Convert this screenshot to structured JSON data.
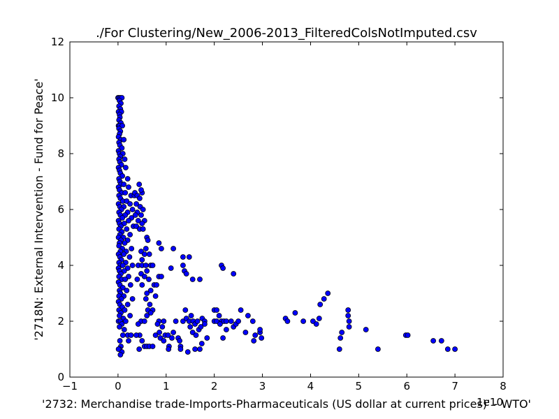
{
  "chart_data": {
    "type": "scatter",
    "title": "./For Clustering/New_2006-2013_FilteredColsNotImputed.csv",
    "xlabel": "'2732: Merchandise trade-Imports-Pharmaceuticals (US dollar at current prices)' - WTO'",
    "ylabel": "'2718N: External Intervention - Fund for Peace'",
    "x_offset_label": "1e10",
    "x_scale": 10000000000,
    "xlim": [
      -1,
      8
    ],
    "ylim": [
      0,
      12
    ],
    "x_ticks": [
      -1,
      0,
      1,
      2,
      3,
      4,
      5,
      6,
      7,
      8
    ],
    "y_ticks": [
      0,
      2,
      4,
      6,
      8,
      10,
      12
    ],
    "x_tick_labels": [
      "−1",
      "0",
      "1",
      "2",
      "3",
      "4",
      "5",
      "6",
      "7",
      "8"
    ],
    "y_tick_labels": [
      "0",
      "2",
      "4",
      "6",
      "8",
      "10",
      "12"
    ],
    "grid": false,
    "legend": "none",
    "marker_color": "#0000ff",
    "marker_edge_color": "#000000",
    "series": [
      {
        "points": [
          [
            0.0,
            10.0
          ],
          [
            0.02,
            10.0
          ],
          [
            0.05,
            10.0
          ],
          [
            0.08,
            10.0
          ],
          [
            0.03,
            9.9
          ],
          [
            0.06,
            9.8
          ],
          [
            0.02,
            9.7
          ],
          [
            0.05,
            9.6
          ],
          [
            0.01,
            9.5
          ],
          [
            0.07,
            9.5
          ],
          [
            0.03,
            9.4
          ],
          [
            0.04,
            9.3
          ],
          [
            0.02,
            9.2
          ],
          [
            0.06,
            9.1
          ],
          [
            0.01,
            9.0
          ],
          [
            0.03,
            9.0
          ],
          [
            0.09,
            9.0
          ],
          [
            0.02,
            8.9
          ],
          [
            0.05,
            8.8
          ],
          [
            0.03,
            8.7
          ],
          [
            0.01,
            8.6
          ],
          [
            0.06,
            8.5
          ],
          [
            0.12,
            8.5
          ],
          [
            0.02,
            8.4
          ],
          [
            0.04,
            8.3
          ],
          [
            0.08,
            8.2
          ],
          [
            0.01,
            8.1
          ],
          [
            0.03,
            8.0
          ],
          [
            0.1,
            8.0
          ],
          [
            0.05,
            7.9
          ],
          [
            0.02,
            7.8
          ],
          [
            0.14,
            7.8
          ],
          [
            0.04,
            7.7
          ],
          [
            0.07,
            7.6
          ],
          [
            0.01,
            7.5
          ],
          [
            0.16,
            7.5
          ],
          [
            0.03,
            7.4
          ],
          [
            0.05,
            7.3
          ],
          [
            0.09,
            7.2
          ],
          [
            0.02,
            7.1
          ],
          [
            0.2,
            7.1
          ],
          [
            0.04,
            7.0
          ],
          [
            0.06,
            6.9
          ],
          [
            0.12,
            6.9
          ],
          [
            0.01,
            6.8
          ],
          [
            0.22,
            6.8
          ],
          [
            0.03,
            6.7
          ],
          [
            0.08,
            6.6
          ],
          [
            0.15,
            6.6
          ],
          [
            0.02,
            6.5
          ],
          [
            0.27,
            6.5
          ],
          [
            0.34,
            6.5
          ],
          [
            0.05,
            6.4
          ],
          [
            0.1,
            6.3
          ],
          [
            0.18,
            6.3
          ],
          [
            0.01,
            6.2
          ],
          [
            0.25,
            6.2
          ],
          [
            0.04,
            6.1
          ],
          [
            0.12,
            6.1
          ],
          [
            0.3,
            6.0
          ],
          [
            0.07,
            6.0
          ],
          [
            0.02,
            5.9
          ],
          [
            0.2,
            5.9
          ],
          [
            0.05,
            5.8
          ],
          [
            0.15,
            5.8
          ],
          [
            0.09,
            5.7
          ],
          [
            0.28,
            5.7
          ],
          [
            0.01,
            5.6
          ],
          [
            0.22,
            5.6
          ],
          [
            0.03,
            5.5
          ],
          [
            0.13,
            5.5
          ],
          [
            0.06,
            5.4
          ],
          [
            0.32,
            5.4
          ],
          [
            0.02,
            5.3
          ],
          [
            0.18,
            5.3
          ],
          [
            0.08,
            5.2
          ],
          [
            0.04,
            5.1
          ],
          [
            0.25,
            5.1
          ],
          [
            0.01,
            5.0
          ],
          [
            0.11,
            5.0
          ],
          [
            0.06,
            4.9
          ],
          [
            0.2,
            4.9
          ],
          [
            0.03,
            4.8
          ],
          [
            0.14,
            4.8
          ],
          [
            0.02,
            4.7
          ],
          [
            0.09,
            4.6
          ],
          [
            0.28,
            4.6
          ],
          [
            0.05,
            4.5
          ],
          [
            0.17,
            4.5
          ],
          [
            0.01,
            4.4
          ],
          [
            0.12,
            4.4
          ],
          [
            0.04,
            4.3
          ],
          [
            0.24,
            4.3
          ],
          [
            0.07,
            4.2
          ],
          [
            0.02,
            4.1
          ],
          [
            0.16,
            4.1
          ],
          [
            0.05,
            4.0
          ],
          [
            0.1,
            4.0
          ],
          [
            0.3,
            4.0
          ],
          [
            0.01,
            3.9
          ],
          [
            0.2,
            3.9
          ],
          [
            0.03,
            3.8
          ],
          [
            0.13,
            3.8
          ],
          [
            0.06,
            3.7
          ],
          [
            0.02,
            3.6
          ],
          [
            0.22,
            3.6
          ],
          [
            0.08,
            3.5
          ],
          [
            0.15,
            3.5
          ],
          [
            0.01,
            3.4
          ],
          [
            0.04,
            3.3
          ],
          [
            0.26,
            3.3
          ],
          [
            0.1,
            3.2
          ],
          [
            0.03,
            3.1
          ],
          [
            0.18,
            3.1
          ],
          [
            0.05,
            3.0
          ],
          [
            0.02,
            2.9
          ],
          [
            0.12,
            2.9
          ],
          [
            0.07,
            2.8
          ],
          [
            0.3,
            2.8
          ],
          [
            0.01,
            2.7
          ],
          [
            0.04,
            2.6
          ],
          [
            0.2,
            2.6
          ],
          [
            0.09,
            2.5
          ],
          [
            0.02,
            2.4
          ],
          [
            0.14,
            2.4
          ],
          [
            0.06,
            2.3
          ],
          [
            0.03,
            2.2
          ],
          [
            0.25,
            2.2
          ],
          [
            0.11,
            2.1
          ],
          [
            0.01,
            2.0
          ],
          [
            0.05,
            2.0
          ],
          [
            0.16,
            2.0
          ],
          [
            0.08,
            1.9
          ],
          [
            0.03,
            1.8
          ],
          [
            0.13,
            1.7
          ],
          [
            0.2,
            1.5
          ],
          [
            0.27,
            1.5
          ],
          [
            0.1,
            1.5
          ],
          [
            0.04,
            1.3
          ],
          [
            0.22,
            1.3
          ],
          [
            0.06,
            1.1
          ],
          [
            0.03,
            1.0
          ],
          [
            0.08,
            0.9
          ],
          [
            0.05,
            0.8
          ],
          [
            0.01,
            1.0
          ],
          [
            0.35,
            6.6
          ],
          [
            0.4,
            6.5
          ],
          [
            0.45,
            6.4
          ],
          [
            0.5,
            6.6
          ],
          [
            0.48,
            6.7
          ],
          [
            0.44,
            6.9
          ],
          [
            0.38,
            6.2
          ],
          [
            0.46,
            6.1
          ],
          [
            0.52,
            6.0
          ],
          [
            0.4,
            5.9
          ],
          [
            0.36,
            5.8
          ],
          [
            0.48,
            5.8
          ],
          [
            0.42,
            5.6
          ],
          [
            0.55,
            5.6
          ],
          [
            0.5,
            5.5
          ],
          [
            0.38,
            5.4
          ],
          [
            0.45,
            5.3
          ],
          [
            0.52,
            5.3
          ],
          [
            0.6,
            5.0
          ],
          [
            0.62,
            4.9
          ],
          [
            0.58,
            4.6
          ],
          [
            0.48,
            4.5
          ],
          [
            0.55,
            4.4
          ],
          [
            0.65,
            4.4
          ],
          [
            0.5,
            4.2
          ],
          [
            0.42,
            4.0
          ],
          [
            0.5,
            4.0
          ],
          [
            0.58,
            4.0
          ],
          [
            0.68,
            4.0
          ],
          [
            0.72,
            4.0
          ],
          [
            0.6,
            3.8
          ],
          [
            0.48,
            3.7
          ],
          [
            0.55,
            3.6
          ],
          [
            0.64,
            3.5
          ],
          [
            0.4,
            3.5
          ],
          [
            0.5,
            3.3
          ],
          [
            0.75,
            3.3
          ],
          [
            0.8,
            3.3
          ],
          [
            0.6,
            3.0
          ],
          [
            0.68,
            3.1
          ],
          [
            0.58,
            2.8
          ],
          [
            0.66,
            2.6
          ],
          [
            0.72,
            2.4
          ],
          [
            0.62,
            2.4
          ],
          [
            0.68,
            2.3
          ],
          [
            0.6,
            2.2
          ],
          [
            0.48,
            2.0
          ],
          [
            0.55,
            2.0
          ],
          [
            0.42,
            1.9
          ],
          [
            0.45,
            1.5
          ],
          [
            0.38,
            1.5
          ],
          [
            0.5,
            1.3
          ],
          [
            0.44,
            1.0
          ],
          [
            0.55,
            1.1
          ],
          [
            0.6,
            1.1
          ],
          [
            0.65,
            1.1
          ],
          [
            0.72,
            1.1
          ],
          [
            0.85,
            4.8
          ],
          [
            0.9,
            4.6
          ],
          [
            1.15,
            4.6
          ],
          [
            0.85,
            3.6
          ],
          [
            0.9,
            3.6
          ],
          [
            1.1,
            3.9
          ],
          [
            0.78,
            2.9
          ],
          [
            0.85,
            2.0
          ],
          [
            0.95,
            2.0
          ],
          [
            0.82,
            1.9
          ],
          [
            0.86,
            1.6
          ],
          [
            0.92,
            1.8
          ],
          [
            0.78,
            1.5
          ],
          [
            0.98,
            1.5
          ],
          [
            1.04,
            1.5
          ],
          [
            0.88,
            1.4
          ],
          [
            1.12,
            1.4
          ],
          [
            0.95,
            1.3
          ],
          [
            1.15,
            1.6
          ],
          [
            1.06,
            1.1
          ],
          [
            1.05,
            1.0
          ],
          [
            1.2,
            2.0
          ],
          [
            1.25,
            1.4
          ],
          [
            1.28,
            1.3
          ],
          [
            1.3,
            1.1
          ],
          [
            1.3,
            1.0
          ],
          [
            1.35,
            4.3
          ],
          [
            1.35,
            4.0
          ],
          [
            1.38,
            3.8
          ],
          [
            1.42,
            3.7
          ],
          [
            1.48,
            4.3
          ],
          [
            1.55,
            3.5
          ],
          [
            1.7,
            3.5
          ],
          [
            1.4,
            2.4
          ],
          [
            1.35,
            2.0
          ],
          [
            1.42,
            2.1
          ],
          [
            1.48,
            2.0
          ],
          [
            1.52,
            2.2
          ],
          [
            1.56,
            2.0
          ],
          [
            1.6,
            1.9
          ],
          [
            1.5,
            1.8
          ],
          [
            1.55,
            1.6
          ],
          [
            1.62,
            1.5
          ],
          [
            1.68,
            1.7
          ],
          [
            1.72,
            1.8
          ],
          [
            1.65,
            2.0
          ],
          [
            1.75,
            2.1
          ],
          [
            1.8,
            2.0
          ],
          [
            1.6,
            1.0
          ],
          [
            1.7,
            1.0
          ],
          [
            1.45,
            0.9
          ],
          [
            1.74,
            1.2
          ],
          [
            1.85,
            1.4
          ],
          [
            1.8,
            1.9
          ],
          [
            2.0,
            2.4
          ],
          [
            2.05,
            2.4
          ],
          [
            2.1,
            2.2
          ],
          [
            2.0,
            2.0
          ],
          [
            2.05,
            2.0
          ],
          [
            2.15,
            2.0
          ],
          [
            2.2,
            2.0
          ],
          [
            2.25,
            2.0
          ],
          [
            2.12,
            1.9
          ],
          [
            2.25,
            1.7
          ],
          [
            2.18,
            1.4
          ],
          [
            2.15,
            4.0
          ],
          [
            2.18,
            3.9
          ],
          [
            2.4,
            3.7
          ],
          [
            2.35,
            2.0
          ],
          [
            2.4,
            1.8
          ],
          [
            2.45,
            1.9
          ],
          [
            2.5,
            2.0
          ],
          [
            2.55,
            2.4
          ],
          [
            2.65,
            1.6
          ],
          [
            2.7,
            2.2
          ],
          [
            2.8,
            2.0
          ],
          [
            2.85,
            1.5
          ],
          [
            2.82,
            1.3
          ],
          [
            2.95,
            1.6
          ],
          [
            2.95,
            1.7
          ],
          [
            2.98,
            1.4
          ],
          [
            3.48,
            2.1
          ],
          [
            3.52,
            2.0
          ],
          [
            3.68,
            2.3
          ],
          [
            3.85,
            2.0
          ],
          [
            4.05,
            2.0
          ],
          [
            4.12,
            1.9
          ],
          [
            4.18,
            2.1
          ],
          [
            4.2,
            2.6
          ],
          [
            4.28,
            2.8
          ],
          [
            4.36,
            3.0
          ],
          [
            4.62,
            1.4
          ],
          [
            4.65,
            1.6
          ],
          [
            4.6,
            1.0
          ],
          [
            4.78,
            2.4
          ],
          [
            4.78,
            2.2
          ],
          [
            4.8,
            2.0
          ],
          [
            4.8,
            1.8
          ],
          [
            5.15,
            1.7
          ],
          [
            5.4,
            1.0
          ],
          [
            5.98,
            1.5
          ],
          [
            6.02,
            1.5
          ],
          [
            6.55,
            1.3
          ],
          [
            6.72,
            1.3
          ],
          [
            6.85,
            1.0
          ],
          [
            7.0,
            1.0
          ]
        ]
      }
    ]
  }
}
